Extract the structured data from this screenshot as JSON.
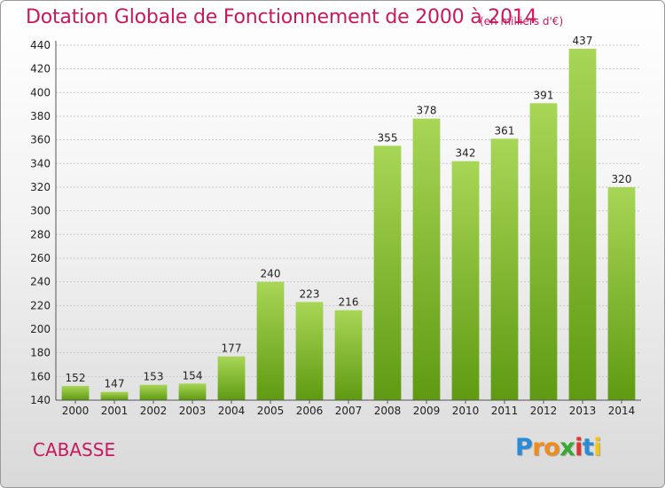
{
  "chart_data": {
    "type": "bar",
    "title": "Dotation Globale de Fonctionnement de 2000 à 2014",
    "subtitle": "(en milliers d'€)",
    "categories": [
      "2000",
      "2001",
      "2002",
      "2003",
      "2004",
      "2005",
      "2006",
      "2007",
      "2008",
      "2009",
      "2010",
      "2011",
      "2012",
      "2013",
      "2014"
    ],
    "values": [
      152,
      147,
      153,
      154,
      177,
      240,
      223,
      216,
      355,
      378,
      342,
      361,
      391,
      437,
      320
    ],
    "ylim": [
      140,
      440
    ],
    "yticks": [
      140,
      160,
      180,
      200,
      220,
      240,
      260,
      280,
      300,
      320,
      340,
      360,
      380,
      400,
      420,
      440
    ],
    "grid": true,
    "colors": {
      "bar_top": "#a8d656",
      "bar_bottom": "#5f9a12",
      "title": "#c8185e"
    }
  },
  "commune": "CABASSE",
  "logo": {
    "letters": [
      "P",
      "r",
      "o",
      "x",
      "i",
      "t",
      "i"
    ],
    "colors": [
      "#2a8bd6",
      "#f08c1c",
      "#f08c1c",
      "#39a935",
      "#e2322d",
      "#2a8bd6",
      "#f0c419"
    ]
  }
}
